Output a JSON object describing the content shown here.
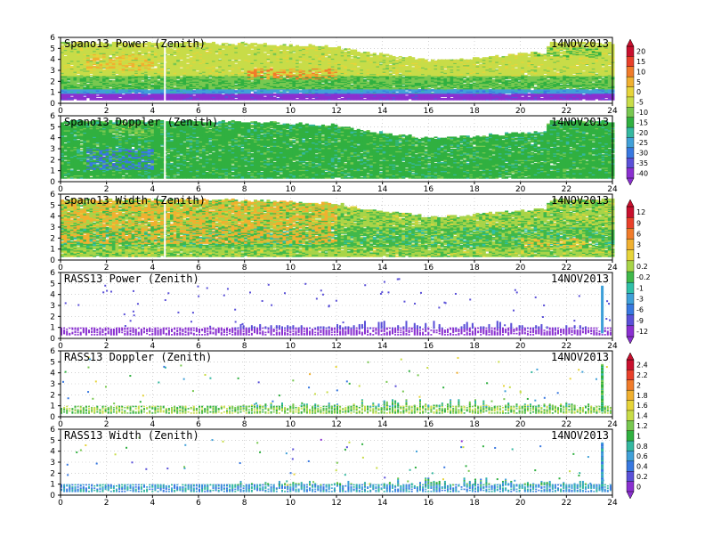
{
  "figure": {
    "date": "14NOV2013",
    "x_ticks": [
      "0",
      "2",
      "4",
      "6",
      "8",
      "10",
      "12",
      "14",
      "16",
      "18",
      "20",
      "22",
      "24"
    ],
    "y_ticks": [
      "0",
      "1",
      "2",
      "3",
      "4",
      "5",
      "6"
    ]
  },
  "chart_data": [
    {
      "type": "heatmap",
      "title": "Spano13 Power (Zenith)",
      "date": "14NOV2013",
      "xlim": [
        0,
        24
      ],
      "ylim": [
        0,
        6
      ],
      "grid": true,
      "mode": "dense",
      "top_profile": [
        [
          0,
          5.6
        ],
        [
          2,
          5.6
        ],
        [
          4,
          5.6
        ],
        [
          6,
          5.6
        ],
        [
          10,
          5.4
        ],
        [
          12,
          5.2
        ],
        [
          13,
          4.8
        ],
        [
          16,
          4.0
        ],
        [
          18,
          4.2
        ],
        [
          19,
          4.4
        ],
        [
          20,
          4.6
        ],
        [
          21,
          4.7
        ],
        [
          21.2,
          5.6
        ],
        [
          24,
          5.6
        ]
      ],
      "bottom": 0.3,
      "color_scale": "power",
      "bands": [
        [
          0.3,
          0.8,
          -40
        ],
        [
          0.8,
          1.3,
          -25
        ],
        [
          1.3,
          2.5,
          -12
        ],
        [
          2.5,
          5.6,
          -5
        ]
      ],
      "blobs": [
        [
          8,
          12,
          2.2,
          3.2,
          8
        ],
        [
          1,
          4,
          3.0,
          4.4,
          3
        ],
        [
          20.5,
          23.5,
          4.2,
          5.0,
          -12
        ]
      ]
    },
    {
      "type": "heatmap",
      "title": "Spano13 Doppler (Zenith)",
      "date": "14NOV2013",
      "xlim": [
        0,
        24
      ],
      "ylim": [
        0,
        6
      ],
      "grid": true,
      "mode": "dense",
      "top_profile": [
        [
          0,
          5.6
        ],
        [
          2,
          5.6
        ],
        [
          4,
          5.6
        ],
        [
          6,
          5.6
        ],
        [
          10,
          5.4
        ],
        [
          12,
          5.2
        ],
        [
          13,
          4.8
        ],
        [
          16,
          4.0
        ],
        [
          18,
          4.2
        ],
        [
          19,
          4.4
        ],
        [
          20,
          4.6
        ],
        [
          21,
          4.7
        ],
        [
          21.2,
          5.6
        ],
        [
          24,
          5.6
        ]
      ],
      "bottom": 0.3,
      "color_scale": "doppler_dense",
      "bands": [
        [
          0.3,
          5.6,
          -15
        ]
      ],
      "blobs": [
        [
          1,
          4,
          1.0,
          3.0,
          -30
        ],
        [
          2,
          4,
          4.2,
          5.2,
          -10
        ]
      ]
    },
    {
      "type": "heatmap",
      "title": "Spano13 Width (Zenith)",
      "date": "14NOV2013",
      "xlim": [
        0,
        24
      ],
      "ylim": [
        0,
        6
      ],
      "grid": true,
      "mode": "dense",
      "top_profile": [
        [
          0,
          5.6
        ],
        [
          2,
          5.6
        ],
        [
          4,
          5.6
        ],
        [
          6,
          5.6
        ],
        [
          10,
          5.4
        ],
        [
          12,
          5.2
        ],
        [
          13,
          4.8
        ],
        [
          16,
          4.0
        ],
        [
          18,
          4.2
        ],
        [
          19,
          4.4
        ],
        [
          20,
          4.6
        ],
        [
          21,
          4.7
        ],
        [
          21.2,
          5.6
        ],
        [
          24,
          5.6
        ]
      ],
      "bottom": 0.3,
      "color_scale": "width",
      "bands": [
        [
          0.3,
          1.2,
          0.2
        ],
        [
          1.2,
          3.0,
          -0.2
        ],
        [
          3.0,
          5.6,
          0.2
        ]
      ],
      "blobs": [
        [
          0,
          12,
          1.5,
          5.6,
          4
        ],
        [
          20,
          23,
          1.0,
          2.0,
          2
        ]
      ]
    },
    {
      "type": "heatmap",
      "title": "RASS13 Power (Zenith)",
      "date": "14NOV2013",
      "xlim": [
        0,
        24
      ],
      "ylim": [
        0,
        6
      ],
      "grid": true,
      "mode": "sparse",
      "color_scale": "rass_power",
      "base": [
        0.3,
        0.9
      ],
      "base_value": -12,
      "columns_value": -9,
      "spike": [
        23.5,
        0.5,
        4.7,
        -3
      ]
    },
    {
      "type": "heatmap",
      "title": "RASS13 Doppler (Zenith)",
      "date": "14NOV2013",
      "xlim": [
        0,
        24
      ],
      "ylim": [
        0,
        6
      ],
      "grid": true,
      "mode": "sparse",
      "color_scale": "doppler",
      "base": [
        0.3,
        0.9
      ],
      "base_value": 1.2,
      "columns_value": 1.0,
      "spike": [
        23.5,
        0.5,
        4.7,
        1.0
      ]
    },
    {
      "type": "heatmap",
      "title": "RASS13 Width (Zenith)",
      "date": "14NOV2013",
      "xlim": [
        0,
        24
      ],
      "ylim": [
        0,
        6
      ],
      "grid": true,
      "mode": "sparse",
      "color_scale": "width2",
      "base": [
        0.3,
        0.9
      ],
      "base_value": 0.6,
      "columns_value": 0.8,
      "spike": [
        23.5,
        0.5,
        4.7,
        0.6
      ]
    }
  ],
  "colorbars": [
    {
      "name": "power-colorbar",
      "labels": [
        "20",
        "15",
        "10",
        "5",
        "0",
        "-5",
        "-10",
        "-15",
        "-20",
        "-25",
        "-30",
        "-35",
        "-40"
      ],
      "colors": [
        "#c8102e",
        "#e8402a",
        "#f07b2a",
        "#f0b030",
        "#e6d43a",
        "#c8dc48",
        "#78c850",
        "#30b040",
        "#34b8a0",
        "#40a0d8",
        "#3878e0",
        "#5a50d8",
        "#8a30d0"
      ]
    },
    {
      "name": "width-colorbar",
      "labels": [
        "12",
        "9",
        "6",
        "3",
        "1",
        "0.2",
        "-0.2",
        "-1",
        "-3",
        "-6",
        "-9",
        "-12"
      ],
      "colors": [
        "#c8102e",
        "#e8402a",
        "#f07b2a",
        "#f0b030",
        "#e6d43a",
        "#a8d448",
        "#40b84a",
        "#30c0a8",
        "#3fa0d8",
        "#3878e0",
        "#5a50d8",
        "#8a30d0"
      ]
    },
    {
      "name": "doppler-colorbar",
      "labels": [
        "2.4",
        "2.2",
        "2",
        "1.8",
        "1.6",
        "1.4",
        "1.2",
        "1",
        "0.8",
        "0.6",
        "0.4",
        "0.2",
        "0"
      ],
      "colors": [
        "#c8102e",
        "#e8402a",
        "#f07b2a",
        "#f0b030",
        "#e6d43a",
        "#c8dc48",
        "#78c850",
        "#30b040",
        "#34b8a0",
        "#40a0d8",
        "#3878e0",
        "#5a50d8",
        "#8a30d0"
      ]
    }
  ]
}
